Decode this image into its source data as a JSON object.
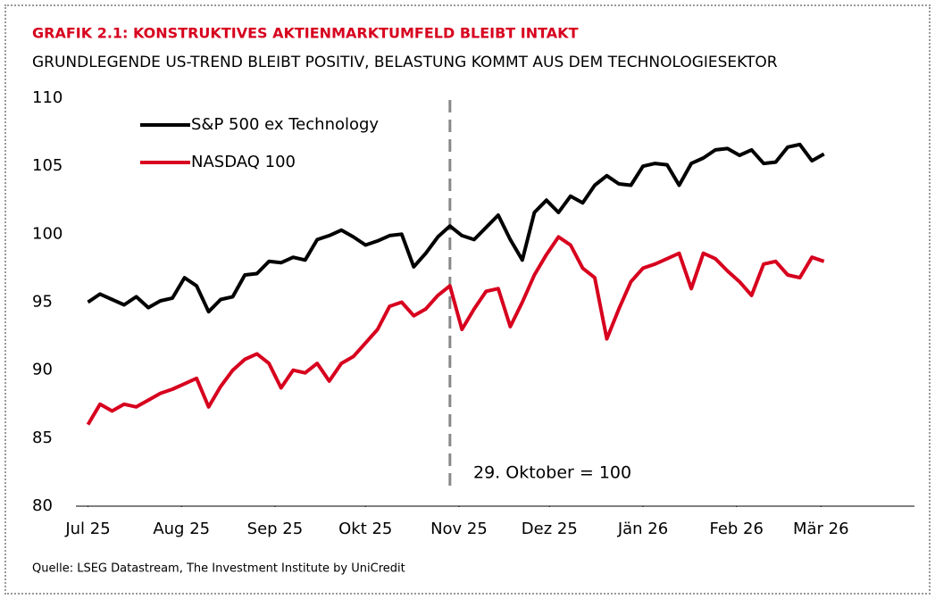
{
  "chart_data": {
    "type": "line",
    "title": "GRAFIK 2.1: KONSTRUKTIVES AKTIENMARKTUMFELD BLEIBT INTAKT",
    "subtitle": "GRUNDLEGENDE US-TREND BLEIBT POSITIV, BELASTUNG KOMMT AUS DEM TECHNOLOGIESEKTOR",
    "source": "Quelle: LSEG Datastream, The Investment Institute by UniCredit",
    "annotation": "29. Oktober = 100",
    "vline_x": 120,
    "x": [
      0,
      4,
      8,
      12,
      16,
      20,
      24,
      28,
      32,
      36,
      40,
      44,
      48,
      52,
      56,
      60,
      64,
      68,
      72,
      76,
      80,
      84,
      88,
      92,
      96,
      100,
      104,
      108,
      112,
      116,
      120,
      124,
      128,
      132,
      136,
      140,
      144,
      148,
      152,
      156,
      160,
      164,
      168,
      172,
      176,
      180,
      184,
      188,
      192,
      196,
      200,
      204,
      208,
      212,
      216,
      220,
      224,
      228,
      232,
      236,
      240,
      244
    ],
    "xlim": [
      -4,
      274
    ],
    "xticks": [
      {
        "value": 0,
        "label": "Jul 25"
      },
      {
        "value": 31,
        "label": "Aug 25"
      },
      {
        "value": 62,
        "label": "Sep 25"
      },
      {
        "value": 92,
        "label": "Okt 25"
      },
      {
        "value": 123,
        "label": "Nov 25"
      },
      {
        "value": 153,
        "label": "Dez 25"
      },
      {
        "value": 184,
        "label": "Jän 26"
      },
      {
        "value": 215,
        "label": "Feb 26"
      },
      {
        "value": 243,
        "label": "Mär 26"
      }
    ],
    "ylim": [
      80,
      110
    ],
    "yticks": [
      80,
      85,
      90,
      95,
      100,
      105,
      110
    ],
    "series": [
      {
        "name": "S&P 500 ex Technology",
        "color": "#000000",
        "values": [
          95.0,
          95.6,
          95.2,
          94.8,
          95.4,
          94.6,
          95.1,
          95.3,
          96.8,
          96.2,
          94.3,
          95.2,
          95.4,
          97.0,
          97.1,
          98.0,
          97.9,
          98.3,
          98.1,
          99.6,
          99.9,
          100.3,
          99.8,
          99.2,
          99.5,
          99.9,
          100.0,
          97.6,
          98.6,
          99.8,
          100.6,
          99.9,
          99.6,
          100.5,
          101.4,
          99.6,
          98.1,
          101.6,
          102.5,
          101.6,
          102.8,
          102.3,
          103.6,
          104.3,
          103.7,
          103.6,
          105.0,
          105.2,
          105.1,
          103.6,
          105.2,
          105.6,
          106.2,
          106.3,
          105.8,
          106.2,
          105.2,
          105.3,
          106.4,
          106.6,
          105.4,
          105.9
        ]
      },
      {
        "name": "NASDAQ 100",
        "color": "#d7001e",
        "values": [
          86.0,
          87.5,
          87.0,
          87.5,
          87.3,
          87.8,
          88.3,
          88.6,
          89.0,
          89.4,
          87.3,
          88.8,
          90.0,
          90.8,
          91.2,
          90.5,
          88.7,
          90.0,
          89.8,
          90.5,
          89.2,
          90.5,
          91.0,
          92.0,
          93.0,
          94.7,
          95.0,
          94.0,
          94.5,
          95.5,
          96.2,
          93.0,
          94.5,
          95.8,
          96.0,
          93.2,
          95.0,
          97.0,
          98.5,
          99.8,
          99.2,
          97.5,
          96.8,
          92.3,
          94.5,
          96.5,
          97.5,
          97.8,
          98.2,
          98.6,
          96.0,
          98.6,
          98.2,
          97.3,
          96.5,
          95.5,
          97.8,
          98.0,
          97.0,
          96.8,
          98.3,
          98.0
        ]
      }
    ]
  }
}
